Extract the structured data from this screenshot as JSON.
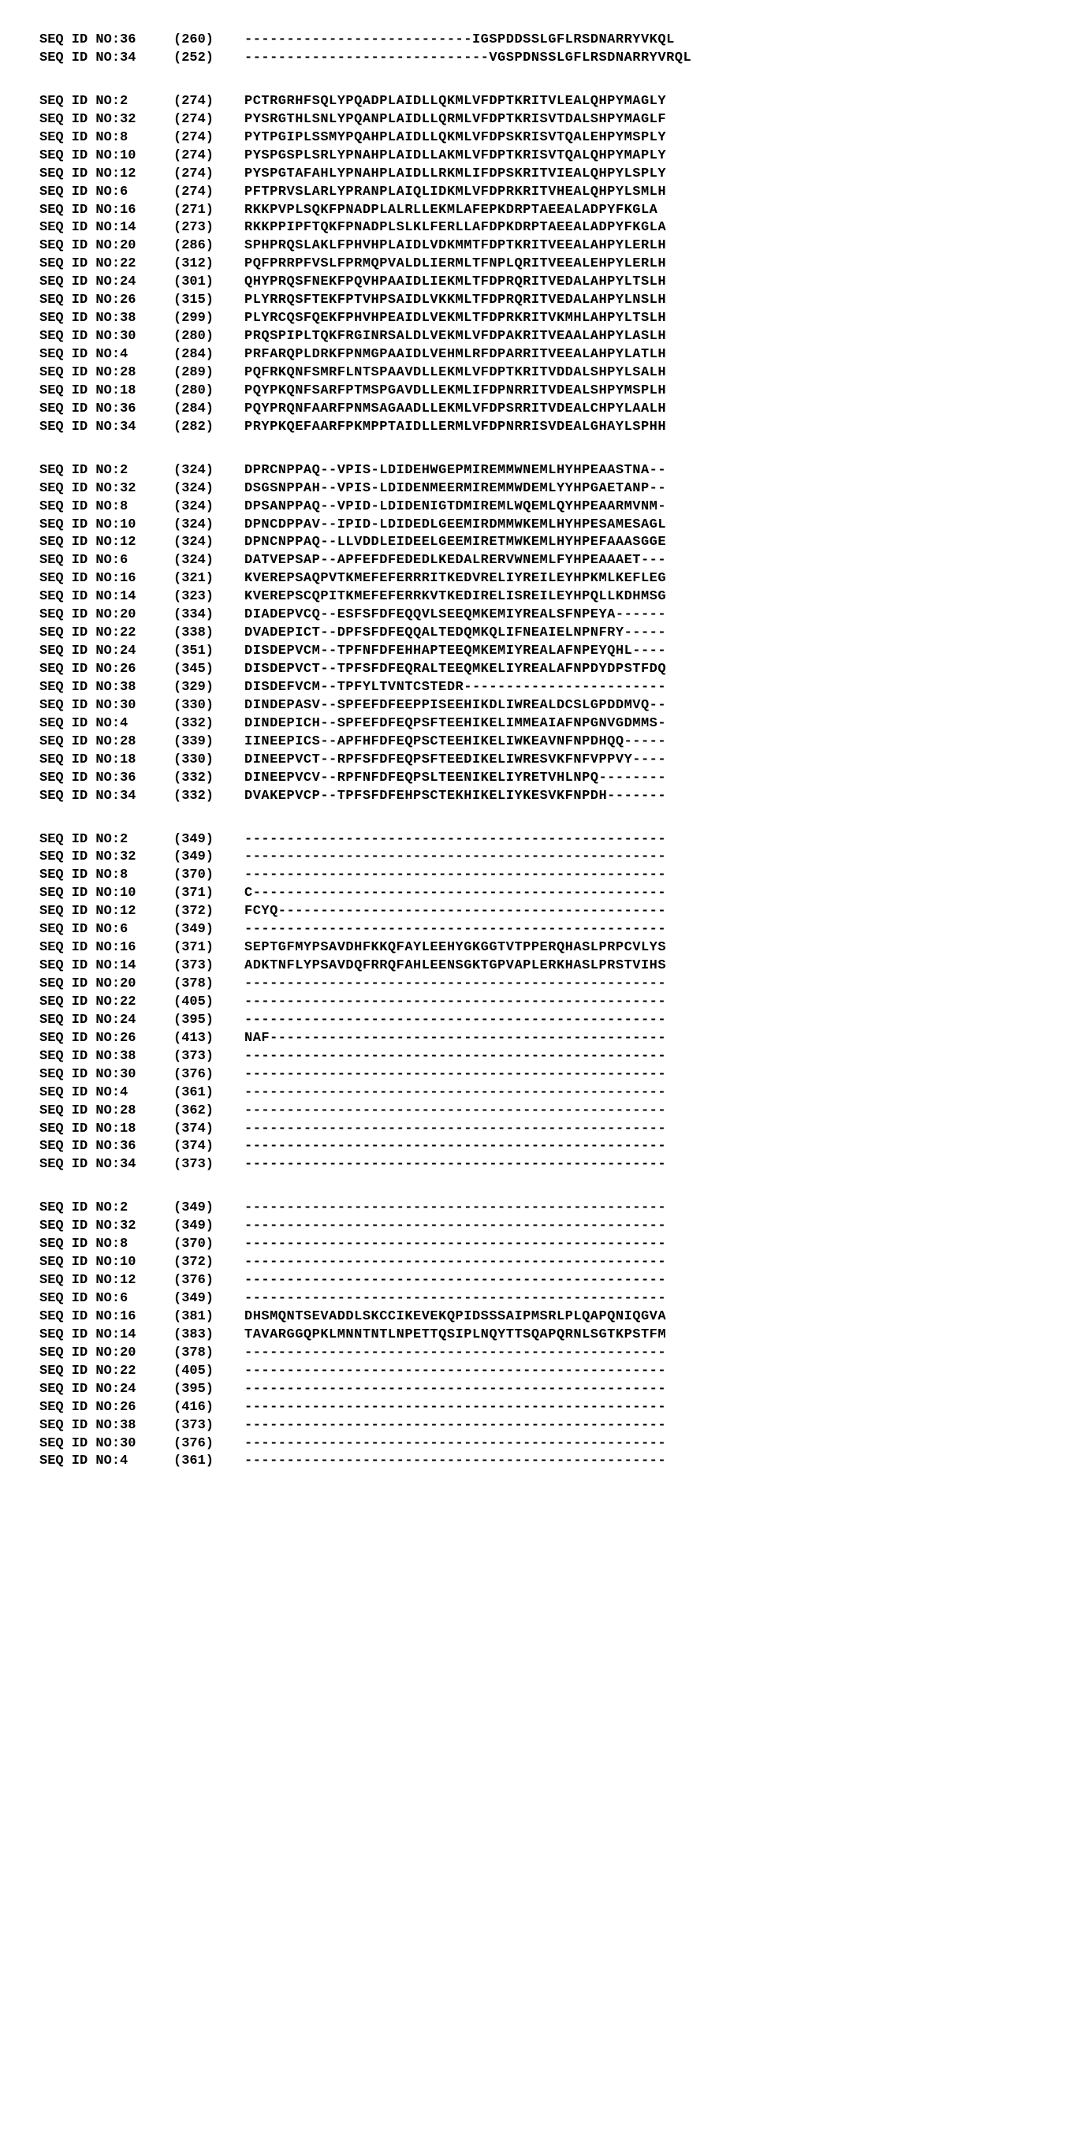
{
  "blocks": [
    {
      "rows": [
        {
          "label": "SEQ ID NO:36",
          "pos": "(260)",
          "seq": "---------------------------IGSPDDSSLGFLRSDNARRYVKQL"
        },
        {
          "label": "SEQ ID NO:34",
          "pos": "(252)",
          "seq": "-----------------------------VGSPDNSSLGFLRSDNARRYVRQL"
        }
      ]
    },
    {
      "rows": [
        {
          "label": "SEQ ID NO:2",
          "pos": "(274)",
          "seq": "PCTRGRHFSQLYPQADPLAIDLLQKMLVFDPTKRITVLEALQHPYMAGLY"
        },
        {
          "label": "SEQ ID NO:32",
          "pos": "(274)",
          "seq": "PYSRGTHLSNLYPQANPLAIDLLQRMLVFDPTKRISVTDALSHPYMAGLF"
        },
        {
          "label": "SEQ ID NO:8",
          "pos": "(274)",
          "seq": "PYTPGIPLSSMYPQAHPLAIDLLQKMLVFDPSKRISVTQALEHPYMSPLY"
        },
        {
          "label": "SEQ ID NO:10",
          "pos": "(274)",
          "seq": "PYSPGSPLSRLYPNAHPLAIDLLAKMLVFDPTKRISVTQALQHPYMAPLY"
        },
        {
          "label": "SEQ ID NO:12",
          "pos": "(274)",
          "seq": "PYSPGTAFAHLYPNAHPLAIDLLRKMLIFDPSKRITVIEALQHPYLSPLY"
        },
        {
          "label": "SEQ ID NO:6",
          "pos": "(274)",
          "seq": "PFTPRVSLARLYPRANPLAIQLIDKMLVFDPRKRITVHEALQHPYLSMLH"
        },
        {
          "label": "SEQ ID NO:16",
          "pos": "(271)",
          "seq": "RKKPVPLSQKFPNADPLALRLLEKMLAFEPKDRPTAEEALADPYFKGLA"
        },
        {
          "label": "SEQ ID NO:14",
          "pos": "(273)",
          "seq": "RKKPPIPFTQKFPNADPLSLKLFERLLAFDPKDRPTAEEALADPYFKGLA"
        },
        {
          "label": "SEQ ID NO:20",
          "pos": "(286)",
          "seq": "SPHPRQSLAKLFPHVHPLAIDLVDKMMTFDPTKRITVEEALAHPYLERLH"
        },
        {
          "label": "SEQ ID NO:22",
          "pos": "(312)",
          "seq": "PQFPRRPFVSLFPRMQPVALDLIERMLTFNPLQRITVEEALEHPYLERLH"
        },
        {
          "label": "SEQ ID NO:24",
          "pos": "(301)",
          "seq": "QHYPRQSFNEKFPQVHPAAIDLIEKMLTFDPRQRITVEDALAHPYLTSLH"
        },
        {
          "label": "SEQ ID NO:26",
          "pos": "(315)",
          "seq": "PLYRRQSFTEKFPTVHPSAIDLVKKMLTFDPRQRITVEDALAHPYLNSLH"
        },
        {
          "label": "SEQ ID NO:38",
          "pos": "(299)",
          "seq": "PLYRCQSFQEKFPHVHPEAIDLVEKMLTFDPRKRITVKMHLAHPYLTSLH"
        },
        {
          "label": "SEQ ID NO:30",
          "pos": "(280)",
          "seq": "PRQSPIPLTQKFRGINRSALDLVEKMLVFDPAKRITVEAALAHPYLASLH"
        },
        {
          "label": "SEQ ID NO:4",
          "pos": "(284)",
          "seq": "PRFARQPLDRKFPNMGPAAIDLVEHMLRFDPARRITVEEALAHPYLATLH"
        },
        {
          "label": "SEQ ID NO:28",
          "pos": "(289)",
          "seq": "PQFRKQNFSMRFLNTSPAAVDLLEKMLVFDPTKRITVDDALSHPYLSALH"
        },
        {
          "label": "SEQ ID NO:18",
          "pos": "(280)",
          "seq": "PQYPKQNFSARFPTMSPGAVDLLEKMLIFDPNRRITVDEALSHPYMSPLH"
        },
        {
          "label": "SEQ ID NO:36",
          "pos": "(284)",
          "seq": "PQYPRQNFAARFPNMSAGAADLLEKMLVFDPSRRITVDEALCHPYLAALH"
        },
        {
          "label": "SEQ ID NO:34",
          "pos": "(282)",
          "seq": "PRYPKQEFAARFPKMPPTAIDLLERMLVFDPNRRISVDEALGHAYLSPHH"
        }
      ]
    },
    {
      "rows": [
        {
          "label": "SEQ ID NO:2",
          "pos": "(324)",
          "seq": "DPRCNPPAQ--VPIS-LDIDEHWGEPMIREMMWNEMLHYHPEAASTNA--"
        },
        {
          "label": "SEQ ID NO:32",
          "pos": "(324)",
          "seq": "DSGSNPPAH--VPIS-LDIDENMEERMIREMMWDEMLYYHPGAETANP--"
        },
        {
          "label": "SEQ ID NO:8",
          "pos": "(324)",
          "seq": "DPSANPPAQ--VPID-LDIDENIGTDMIREMLWQEMLQYHPEAARMVNM-"
        },
        {
          "label": "SEQ ID NO:10",
          "pos": "(324)",
          "seq": "DPNCDPPAV--IPID-LDIDEDLGEEMIRDMMWKEMLHYHPESAMESAGL"
        },
        {
          "label": "SEQ ID NO:12",
          "pos": "(324)",
          "seq": "DPNCNPPAQ--LLVDDLEIDEELGEEMIRETMWKEMLHYHPEFAAASGGE"
        },
        {
          "label": "SEQ ID NO:6",
          "pos": "(324)",
          "seq": "DATVEPSAP--APFEFDFEDEDLKEDALRERVWNEMLFYHPEAAAET---"
        },
        {
          "label": "SEQ ID NO:16",
          "pos": "(321)",
          "seq": "KVEREPSAQPVTKMEFEFERRRITKEDVRELIYREILEYHPKMLKEFLEG"
        },
        {
          "label": "SEQ ID NO:14",
          "pos": "(323)",
          "seq": "KVEREPSCQPITKMEFEFERRKVTKEDIRELISREILEYHPQLLKDHMSG"
        },
        {
          "label": "SEQ ID NO:20",
          "pos": "(334)",
          "seq": "DIADEPVCQ--ESFSFDFEQQVLSEEQMKEMIYREALSFNPEYA------"
        },
        {
          "label": "SEQ ID NO:22",
          "pos": "(338)",
          "seq": "DVADEPICT--DPFSFDFEQQALTEDQMKQLIFNEAIELNPNFRY-----"
        },
        {
          "label": "SEQ ID NO:24",
          "pos": "(351)",
          "seq": "DISDEPVCM--TPFNFDFEHHAPTEEQMKEMIYREALAFNPEYQHL----"
        },
        {
          "label": "SEQ ID NO:26",
          "pos": "(345)",
          "seq": "DISDEPVCT--TPFSFDFEQRALTEEQMKELIYREALAFNPDYDPSTFDQ"
        },
        {
          "label": "SEQ ID NO:38",
          "pos": "(329)",
          "seq": "DISDEFVCM--TPFYLTVNTCSTEDR------------------------"
        },
        {
          "label": "SEQ ID NO:30",
          "pos": "(330)",
          "seq": "DINDEPASV--SPFEFDFEEPPISEEHIKDLIWREALDCSLGPDDMVQ--"
        },
        {
          "label": "SEQ ID NO:4",
          "pos": "(332)",
          "seq": "DINDEPICH--SPFEFDFEQPSFTEEHIKELIMMEAIAFNPGNVGDMMS-"
        },
        {
          "label": "SEQ ID NO:28",
          "pos": "(339)",
          "seq": "IINEEPICS--APFHFDFEQPSCTEEHIKELIWKEAVNFNPDHQQ-----"
        },
        {
          "label": "SEQ ID NO:18",
          "pos": "(330)",
          "seq": "DINEEPVCT--RPFSFDFEQPSFTEEDIKELIWRESVKFNFVPPVY----"
        },
        {
          "label": "SEQ ID NO:36",
          "pos": "(332)",
          "seq": "DINEEPVCV--RPFNFDFEQPSLTEENIKELIYRETVHLNPQ--------"
        },
        {
          "label": "SEQ ID NO:34",
          "pos": "(332)",
          "seq": "DVAKEPVCP--TPFSFDFEHPSCTEKHIKELIYKESVKFNPDH-------"
        }
      ]
    },
    {
      "rows": [
        {
          "label": "SEQ ID NO:2",
          "pos": "(349)",
          "seq": "--------------------------------------------------"
        },
        {
          "label": "SEQ ID NO:32",
          "pos": "(349)",
          "seq": "--------------------------------------------------"
        },
        {
          "label": "SEQ ID NO:8",
          "pos": "(370)",
          "seq": "--------------------------------------------------"
        },
        {
          "label": "SEQ ID NO:10",
          "pos": "(371)",
          "seq": "C-------------------------------------------------"
        },
        {
          "label": "SEQ ID NO:12",
          "pos": "(372)",
          "seq": "FCYQ----------------------------------------------"
        },
        {
          "label": "SEQ ID NO:6",
          "pos": "(349)",
          "seq": "--------------------------------------------------"
        },
        {
          "label": "SEQ ID NO:16",
          "pos": "(371)",
          "seq": "SEPTGFMYPSAVDHFKKQFAYLEEHYGKGGTVTPPERQHASLPRPCVLYS"
        },
        {
          "label": "SEQ ID NO:14",
          "pos": "(373)",
          "seq": "ADKTNFLYPSAVDQFRRQFAHLEENSGKTGPVAPLERKHASLPRSTVIHS"
        },
        {
          "label": "SEQ ID NO:20",
          "pos": "(378)",
          "seq": "--------------------------------------------------"
        },
        {
          "label": "SEQ ID NO:22",
          "pos": "(405)",
          "seq": "--------------------------------------------------"
        },
        {
          "label": "SEQ ID NO:24",
          "pos": "(395)",
          "seq": "--------------------------------------------------"
        },
        {
          "label": "SEQ ID NO:26",
          "pos": "(413)",
          "seq": "NAF-----------------------------------------------"
        },
        {
          "label": "SEQ ID NO:38",
          "pos": "(373)",
          "seq": "--------------------------------------------------"
        },
        {
          "label": "SEQ ID NO:30",
          "pos": "(376)",
          "seq": "--------------------------------------------------"
        },
        {
          "label": "SEQ ID NO:4",
          "pos": "(361)",
          "seq": "--------------------------------------------------"
        },
        {
          "label": "SEQ ID NO:28",
          "pos": "(362)",
          "seq": "--------------------------------------------------"
        },
        {
          "label": "SEQ ID NO:18",
          "pos": "(374)",
          "seq": "--------------------------------------------------"
        },
        {
          "label": "SEQ ID NO:36",
          "pos": "(374)",
          "seq": "--------------------------------------------------"
        },
        {
          "label": "SEQ ID NO:34",
          "pos": "(373)",
          "seq": "--------------------------------------------------"
        }
      ]
    },
    {
      "rows": [
        {
          "label": "SEQ ID NO:2",
          "pos": "(349)",
          "seq": "--------------------------------------------------"
        },
        {
          "label": "SEQ ID NO:32",
          "pos": "(349)",
          "seq": "--------------------------------------------------"
        },
        {
          "label": "SEQ ID NO:8",
          "pos": "(370)",
          "seq": "--------------------------------------------------"
        },
        {
          "label": "SEQ ID NO:10",
          "pos": "(372)",
          "seq": "--------------------------------------------------"
        },
        {
          "label": "SEQ ID NO:12",
          "pos": "(376)",
          "seq": "--------------------------------------------------"
        },
        {
          "label": "SEQ ID NO:6",
          "pos": "(349)",
          "seq": "--------------------------------------------------"
        },
        {
          "label": "SEQ ID NO:16",
          "pos": "(381)",
          "seq": "DHSMQNTSEVADDLSKCCIKEVEKQPIDSSSAIPMSRLPLQAPQNIQGVA"
        },
        {
          "label": "SEQ ID NO:14",
          "pos": "(383)",
          "seq": "TAVARGGQPKLMNNTNTLNPETTQSIPLNQYTTSQAPQRNLSGTKPSTFM"
        },
        {
          "label": "SEQ ID NO:20",
          "pos": "(378)",
          "seq": "--------------------------------------------------"
        },
        {
          "label": "SEQ ID NO:22",
          "pos": "(405)",
          "seq": "--------------------------------------------------"
        },
        {
          "label": "SEQ ID NO:24",
          "pos": "(395)",
          "seq": "--------------------------------------------------"
        },
        {
          "label": "SEQ ID NO:26",
          "pos": "(416)",
          "seq": "--------------------------------------------------"
        },
        {
          "label": "SEQ ID NO:38",
          "pos": "(373)",
          "seq": "--------------------------------------------------"
        },
        {
          "label": "SEQ ID NO:30",
          "pos": "(376)",
          "seq": "--------------------------------------------------"
        },
        {
          "label": "SEQ ID NO:4",
          "pos": "(361)",
          "seq": "--------------------------------------------------"
        }
      ]
    }
  ]
}
